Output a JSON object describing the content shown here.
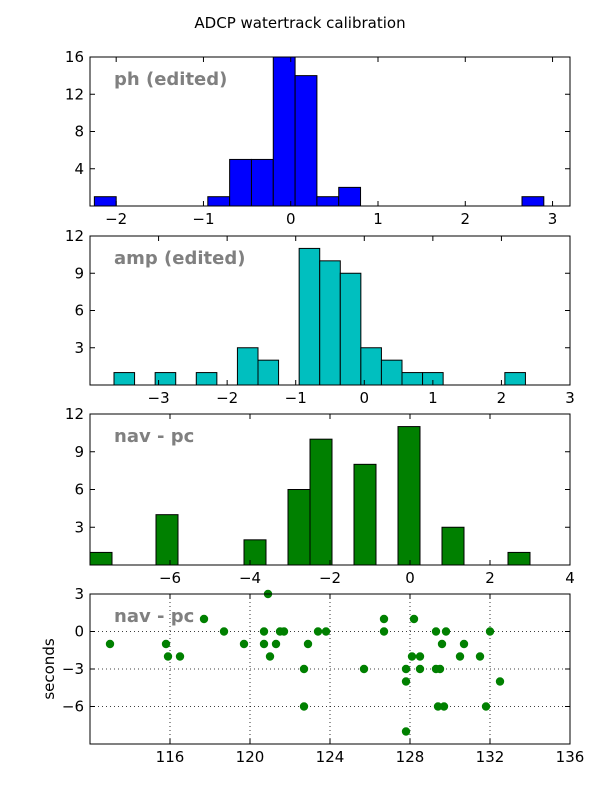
{
  "figure": {
    "title": "ADCP watertrack calibration"
  },
  "chart_data": [
    {
      "type": "bar",
      "title": "ph (edited)",
      "color": "#0000ff",
      "xlim": [
        -2.3,
        3.2
      ],
      "ylim": [
        0,
        16
      ],
      "xticks": [
        -2,
        -1,
        0,
        1,
        2,
        3
      ],
      "xtick_labels": [
        "−2",
        "−1",
        "0",
        "1",
        "2",
        "3"
      ],
      "yticks": [
        4,
        8,
        12,
        16
      ],
      "ytick_labels": [
        "4",
        "8",
        "12",
        "16"
      ],
      "bin_width": 0.25,
      "bins": [
        {
          "x0": -2.25,
          "count": 1
        },
        {
          "x0": -0.95,
          "count": 1
        },
        {
          "x0": -0.7,
          "count": 5
        },
        {
          "x0": -0.45,
          "count": 5
        },
        {
          "x0": -0.2,
          "count": 16
        },
        {
          "x0": 0.05,
          "count": 14
        },
        {
          "x0": 0.3,
          "count": 1
        },
        {
          "x0": 0.55,
          "count": 2
        },
        {
          "x0": 2.65,
          "count": 1
        }
      ]
    },
    {
      "type": "bar",
      "title": "amp (edited)",
      "color": "#00bfbf",
      "xlim": [
        -4.0,
        3.0
      ],
      "ylim": [
        0,
        12
      ],
      "xticks": [
        -3,
        -2,
        -1,
        0,
        1,
        2,
        3
      ],
      "xtick_labels": [
        "−3",
        "−2",
        "−1",
        "0",
        "1",
        "2",
        "3"
      ],
      "yticks": [
        3,
        6,
        9,
        12
      ],
      "ytick_labels": [
        "3",
        "6",
        "9",
        "12"
      ],
      "bin_width": 0.3,
      "bins": [
        {
          "x0": -3.65,
          "count": 1
        },
        {
          "x0": -3.05,
          "count": 1
        },
        {
          "x0": -2.45,
          "count": 1
        },
        {
          "x0": -1.85,
          "count": 3
        },
        {
          "x0": -1.55,
          "count": 2
        },
        {
          "x0": -0.95,
          "count": 11
        },
        {
          "x0": -0.65,
          "count": 10
        },
        {
          "x0": -0.35,
          "count": 9
        },
        {
          "x0": -0.05,
          "count": 3
        },
        {
          "x0": 0.25,
          "count": 2
        },
        {
          "x0": 0.55,
          "count": 1
        },
        {
          "x0": 0.85,
          "count": 1
        },
        {
          "x0": 2.05,
          "count": 1
        }
      ]
    },
    {
      "type": "bar",
      "title": "nav - pc",
      "color": "#008000",
      "xlim": [
        -8.0,
        4.0
      ],
      "ylim": [
        0,
        12
      ],
      "xticks": [
        -6,
        -4,
        -2,
        0,
        2,
        4
      ],
      "xtick_labels": [
        "−6",
        "−4",
        "−2",
        "0",
        "2",
        "4"
      ],
      "yticks": [
        3,
        6,
        9,
        12
      ],
      "ytick_labels": [
        "3",
        "6",
        "9",
        "12"
      ],
      "bin_width": 0.55,
      "bins": [
        {
          "x0": -8.0,
          "count": 1
        },
        {
          "x0": -6.35,
          "count": 4
        },
        {
          "x0": -4.15,
          "count": 2
        },
        {
          "x0": -3.05,
          "count": 6
        },
        {
          "x0": -2.5,
          "count": 10
        },
        {
          "x0": -1.4,
          "count": 8
        },
        {
          "x0": -0.3,
          "count": 11
        },
        {
          "x0": 0.8,
          "count": 3
        },
        {
          "x0": 2.45,
          "count": 1
        }
      ]
    },
    {
      "type": "scatter",
      "title": "nav - pc",
      "ylabel": "seconds",
      "color": "#008000",
      "grid": true,
      "xlim": [
        112,
        136
      ],
      "ylim": [
        -9,
        3
      ],
      "xticks": [
        116,
        120,
        124,
        128,
        132,
        136
      ],
      "xtick_labels": [
        "116",
        "120",
        "124",
        "128",
        "132",
        "136"
      ],
      "yticks": [
        3,
        0,
        -3,
        -6
      ],
      "ytick_labels": [
        "3",
        "0",
        "−3",
        "−6"
      ],
      "points": [
        [
          113.0,
          -1
        ],
        [
          115.8,
          -1
        ],
        [
          115.9,
          -2
        ],
        [
          116.5,
          -2
        ],
        [
          117.7,
          1
        ],
        [
          118.7,
          0
        ],
        [
          119.7,
          -1
        ],
        [
          120.7,
          0
        ],
        [
          120.7,
          -1
        ],
        [
          120.9,
          3
        ],
        [
          121.0,
          -2
        ],
        [
          121.3,
          -1
        ],
        [
          121.5,
          0
        ],
        [
          121.7,
          0
        ],
        [
          122.7,
          -3
        ],
        [
          122.7,
          -6
        ],
        [
          122.9,
          -1
        ],
        [
          123.4,
          0
        ],
        [
          123.8,
          0
        ],
        [
          125.7,
          -3
        ],
        [
          126.7,
          1
        ],
        [
          126.7,
          0
        ],
        [
          127.8,
          -3
        ],
        [
          127.8,
          -4
        ],
        [
          127.8,
          -8
        ],
        [
          128.1,
          -2
        ],
        [
          128.2,
          1
        ],
        [
          128.5,
          -3
        ],
        [
          128.5,
          -2
        ],
        [
          129.3,
          0
        ],
        [
          129.3,
          -3
        ],
        [
          129.4,
          -6
        ],
        [
          129.5,
          -3
        ],
        [
          129.6,
          -1
        ],
        [
          129.7,
          -6
        ],
        [
          129.8,
          0
        ],
        [
          130.5,
          -2
        ],
        [
          130.7,
          -1
        ],
        [
          131.5,
          -2
        ],
        [
          131.8,
          -6
        ],
        [
          132.0,
          0
        ],
        [
          132.5,
          -4
        ]
      ]
    }
  ]
}
